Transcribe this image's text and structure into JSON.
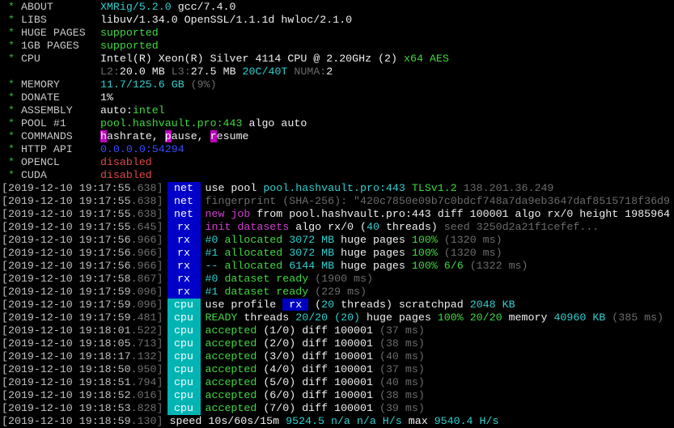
{
  "header": [
    {
      "label": "ABOUT",
      "segments": [
        {
          "t": "XMRig/5.2.0",
          "c": "c"
        },
        {
          "t": " gcc/7.4.0",
          "c": "w"
        }
      ]
    },
    {
      "label": "LIBS",
      "segments": [
        {
          "t": "libuv/1.34.0 OpenSSL/1.1.1d hwloc/2.1.0",
          "c": "w"
        }
      ]
    },
    {
      "label": "HUGE PAGES",
      "segments": [
        {
          "t": "supported",
          "c": "G"
        }
      ]
    },
    {
      "label": "1GB PAGES",
      "segments": [
        {
          "t": "supported",
          "c": "G"
        }
      ]
    },
    {
      "label": "CPU",
      "segments": [
        {
          "t": "Intel(R) Xeon(R) Silver 4114 CPU @ 2.20GHz (2) ",
          "c": "w"
        },
        {
          "t": "x64 AES",
          "c": "G"
        }
      ]
    },
    {
      "label": "",
      "segments": [
        {
          "t": "L2:",
          "c": "d"
        },
        {
          "t": "20.0 MB ",
          "c": "w"
        },
        {
          "t": "L3:",
          "c": "d"
        },
        {
          "t": "27.5 MB ",
          "c": "w"
        },
        {
          "t": "20C/40T ",
          "c": "c"
        },
        {
          "t": "NUMA:",
          "c": "d"
        },
        {
          "t": "2",
          "c": "w"
        }
      ]
    },
    {
      "label": "MEMORY",
      "segments": [
        {
          "t": "11.7/125.6 GB ",
          "c": "c"
        },
        {
          "t": "(9%)",
          "c": "d"
        }
      ]
    },
    {
      "label": "DONATE",
      "segments": [
        {
          "t": "1%",
          "c": "w"
        }
      ]
    },
    {
      "label": "ASSEMBLY",
      "segments": [
        {
          "t": "auto:",
          "c": "w"
        },
        {
          "t": "intel",
          "c": "G"
        }
      ]
    },
    {
      "label": "POOL #1",
      "segments": [
        {
          "t": "pool.hashvault.pro:443",
          "c": "G"
        },
        {
          "t": " algo auto",
          "c": "w"
        }
      ]
    },
    {
      "label": "COMMANDS",
      "segments": [
        {
          "t": "h",
          "c": "hl"
        },
        {
          "t": "ashrate, ",
          "c": "w"
        },
        {
          "t": "p",
          "c": "hl"
        },
        {
          "t": "ause, ",
          "c": "w"
        },
        {
          "t": "r",
          "c": "hl"
        },
        {
          "t": "esume",
          "c": "w"
        }
      ]
    },
    {
      "label": "HTTP API",
      "segments": [
        {
          "t": "0.0.0.0:54294",
          "c": "b"
        }
      ]
    },
    {
      "label": "OPENCL",
      "segments": [
        {
          "t": "disabled",
          "c": "r"
        }
      ]
    },
    {
      "label": "CUDA",
      "segments": [
        {
          "t": "disabled",
          "c": "r"
        }
      ]
    }
  ],
  "log": [
    {
      "time": "[2019-12-10 19:17:55",
      "ms": ".638]",
      "tag": "net",
      "segments": [
        {
          "t": "use pool ",
          "c": "w"
        },
        {
          "t": "pool.hashvault.pro:443 ",
          "c": "c"
        },
        {
          "t": "TLSv1.2 ",
          "c": "G"
        },
        {
          "t": "138.201.36.249",
          "c": "d"
        }
      ]
    },
    {
      "time": "[2019-12-10 19:17:55",
      "ms": ".638]",
      "tag": "net",
      "segments": [
        {
          "t": "fingerprint (SHA-256): \"420c7850e09b7c0bdcf748a7da9eb3647daf8515718f36d9",
          "c": "d"
        }
      ]
    },
    {
      "time": "[2019-12-10 19:17:55",
      "ms": ".638]",
      "tag": "net",
      "segments": [
        {
          "t": "new job",
          "c": "m"
        },
        {
          "t": " from pool.hashvault.pro:443 diff 100001 algo rx/0 height 1985964",
          "c": "w"
        }
      ]
    },
    {
      "time": "[2019-12-10 19:17:55",
      "ms": ".645]",
      "tag": "rx",
      "segments": [
        {
          "t": "init datasets",
          "c": "m"
        },
        {
          "t": " algo rx/0 ",
          "c": "w"
        },
        {
          "t": "(",
          "c": "w"
        },
        {
          "t": "40",
          "c": "c"
        },
        {
          "t": " threads) ",
          "c": "w"
        },
        {
          "t": "seed 3250d2a21f1cefef...",
          "c": "d"
        }
      ]
    },
    {
      "time": "[2019-12-10 19:17:56",
      "ms": ".966]",
      "tag": "rx",
      "segments": [
        {
          "t": "#0 ",
          "c": "c"
        },
        {
          "t": "allocated ",
          "c": "G"
        },
        {
          "t": "3072 MB ",
          "c": "c"
        },
        {
          "t": "huge pages ",
          "c": "w"
        },
        {
          "t": "100% ",
          "c": "G"
        },
        {
          "t": "(1320 ms)",
          "c": "d"
        }
      ]
    },
    {
      "time": "[2019-12-10 19:17:56",
      "ms": ".966]",
      "tag": "rx",
      "segments": [
        {
          "t": "#1 ",
          "c": "c"
        },
        {
          "t": "allocated ",
          "c": "G"
        },
        {
          "t": "3072 MB ",
          "c": "c"
        },
        {
          "t": "huge pages ",
          "c": "w"
        },
        {
          "t": "100% ",
          "c": "G"
        },
        {
          "t": "(1320 ms)",
          "c": "d"
        }
      ]
    },
    {
      "time": "[2019-12-10 19:17:56",
      "ms": ".966]",
      "tag": "rx",
      "segments": [
        {
          "t": "-- ",
          "c": "c"
        },
        {
          "t": "allocated ",
          "c": "G"
        },
        {
          "t": "6144 MB ",
          "c": "c"
        },
        {
          "t": "huge pages ",
          "c": "w"
        },
        {
          "t": "100% 6/6 ",
          "c": "G"
        },
        {
          "t": "(1322 ms)",
          "c": "d"
        }
      ]
    },
    {
      "time": "[2019-12-10 19:17:58",
      "ms": ".867]",
      "tag": "rx",
      "segments": [
        {
          "t": "#0 ",
          "c": "c"
        },
        {
          "t": "dataset ready ",
          "c": "G"
        },
        {
          "t": "(1900 ms)",
          "c": "d"
        }
      ]
    },
    {
      "time": "[2019-12-10 19:17:59",
      "ms": ".096]",
      "tag": "rx",
      "segments": [
        {
          "t": "#1 ",
          "c": "c"
        },
        {
          "t": "dataset ready ",
          "c": "G"
        },
        {
          "t": "(229 ms)",
          "c": "d"
        }
      ]
    },
    {
      "time": "[2019-12-10 19:17:59",
      "ms": ".096]",
      "tag": "cpu",
      "segments": [
        {
          "t": "use profile ",
          "c": "w"
        },
        {
          "t": " rx ",
          "c": "bx"
        },
        {
          "t": " (",
          "c": "w"
        },
        {
          "t": "20",
          "c": "c"
        },
        {
          "t": " threads) scratchpad ",
          "c": "w"
        },
        {
          "t": "2048 KB",
          "c": "c"
        }
      ]
    },
    {
      "time": "[2019-12-10 19:17:59",
      "ms": ".481]",
      "tag": "cpu",
      "segments": [
        {
          "t": "READY",
          "c": "G"
        },
        {
          "t": " threads ",
          "c": "w"
        },
        {
          "t": "20/20 (20)",
          "c": "c"
        },
        {
          "t": " huge pages ",
          "c": "w"
        },
        {
          "t": "100% 20/20",
          "c": "G"
        },
        {
          "t": " memory ",
          "c": "w"
        },
        {
          "t": "40960 KB ",
          "c": "c"
        },
        {
          "t": "(385 ms)",
          "c": "d"
        }
      ]
    },
    {
      "time": "[2019-12-10 19:18:01",
      "ms": ".522]",
      "tag": "cpu",
      "segments": [
        {
          "t": "accepted ",
          "c": "G"
        },
        {
          "t": "(1/0) diff 100001 ",
          "c": "w"
        },
        {
          "t": "(37 ms)",
          "c": "d"
        }
      ]
    },
    {
      "time": "[2019-12-10 19:18:05",
      "ms": ".713]",
      "tag": "cpu",
      "segments": [
        {
          "t": "accepted ",
          "c": "G"
        },
        {
          "t": "(2/0) diff 100001 ",
          "c": "w"
        },
        {
          "t": "(38 ms)",
          "c": "d"
        }
      ]
    },
    {
      "time": "[2019-12-10 19:18:17",
      "ms": ".132]",
      "tag": "cpu",
      "segments": [
        {
          "t": "accepted ",
          "c": "G"
        },
        {
          "t": "(3/0) diff 100001 ",
          "c": "w"
        },
        {
          "t": "(40 ms)",
          "c": "d"
        }
      ]
    },
    {
      "time": "[2019-12-10 19:18:50",
      "ms": ".950]",
      "tag": "cpu",
      "segments": [
        {
          "t": "accepted ",
          "c": "G"
        },
        {
          "t": "(4/0) diff 100001 ",
          "c": "w"
        },
        {
          "t": "(37 ms)",
          "c": "d"
        }
      ]
    },
    {
      "time": "[2019-12-10 19:18:51",
      "ms": ".794]",
      "tag": "cpu",
      "segments": [
        {
          "t": "accepted ",
          "c": "G"
        },
        {
          "t": "(5/0) diff 100001 ",
          "c": "w"
        },
        {
          "t": "(40 ms)",
          "c": "d"
        }
      ]
    },
    {
      "time": "[2019-12-10 19:18:52",
      "ms": ".016]",
      "tag": "cpu",
      "segments": [
        {
          "t": "accepted ",
          "c": "G"
        },
        {
          "t": "(6/0) diff 100001 ",
          "c": "w"
        },
        {
          "t": "(38 ms)",
          "c": "d"
        }
      ]
    },
    {
      "time": "[2019-12-10 19:18:53",
      "ms": ".828]",
      "tag": "cpu",
      "segments": [
        {
          "t": "accepted ",
          "c": "G"
        },
        {
          "t": "(7/0) diff 100001 ",
          "c": "w"
        },
        {
          "t": "(39 ms)",
          "c": "d"
        }
      ]
    },
    {
      "time": "[2019-12-10 19:18:59",
      "ms": ".130]",
      "tag": "",
      "segments": [
        {
          "t": " speed 10s/60s/15m ",
          "c": "w"
        },
        {
          "t": "9524.5 ",
          "c": "c"
        },
        {
          "t": "n/a n/a H/s",
          "c": "c"
        },
        {
          "t": " max ",
          "c": "w"
        },
        {
          "t": "9540.4 H/s",
          "c": "c"
        }
      ]
    }
  ],
  "colors": {
    "net_tag": "#0000c8",
    "cpu_tag": "#00b4b4",
    "cyan": "#30d0d0",
    "green": "#40d840",
    "magenta": "#d040d0",
    "red": "#e04848",
    "blue": "#3a4cff"
  }
}
